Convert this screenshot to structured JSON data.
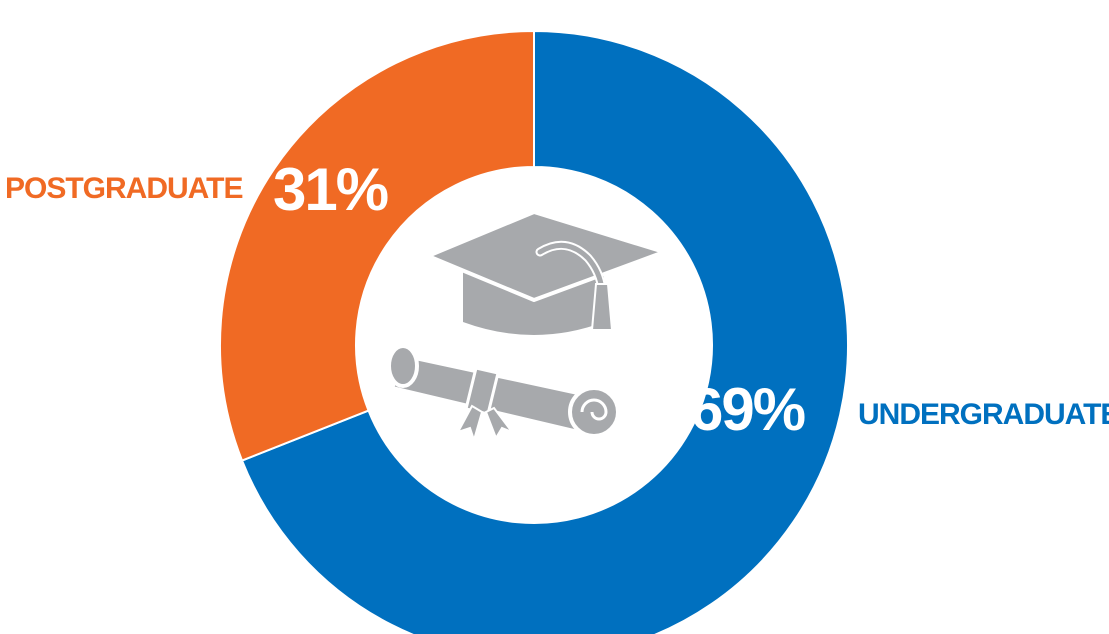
{
  "chart_data": {
    "type": "pie",
    "title": "",
    "categories": [
      "UNDERGRADUATE",
      "POSTGRADUATE"
    ],
    "values": [
      69,
      31
    ],
    "labels": [
      "69%",
      "31%"
    ],
    "colors": [
      "#0070bf",
      "#f06a24"
    ],
    "legend": "none"
  },
  "center_icon": {
    "name": "graduation-cap-and-diploma-icon",
    "color": "#a7a9ac"
  }
}
